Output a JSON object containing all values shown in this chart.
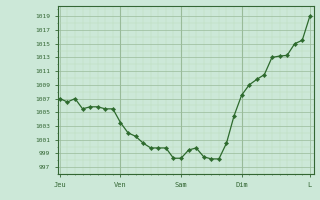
{
  "line_color": "#2d6a2d",
  "marker_color": "#2d6a2d",
  "bg_color": "#cce8d8",
  "grid_color_major": "#99bb99",
  "grid_color_minor": "#bbddbb",
  "axis_color": "#336633",
  "label_color": "#336633",
  "ytick_min": 997,
  "ytick_max": 1019,
  "ytick_step": 2,
  "ylim_min": 996,
  "ylim_max": 1020.5,
  "x_data": [
    0,
    1,
    2,
    3,
    4,
    5,
    6,
    7,
    8,
    9,
    10,
    11,
    12,
    13,
    14,
    15,
    16,
    17,
    18,
    19,
    20,
    21,
    22,
    23,
    24,
    25,
    26,
    27,
    28,
    29,
    30,
    31,
    32,
    33
  ],
  "y_data": [
    1007,
    1006.5,
    1007,
    1005.5,
    1005.8,
    1005.8,
    1005.5,
    1005.5,
    1003.5,
    1002,
    1001.5,
    1000.5,
    999.8,
    999.8,
    999.8,
    998.3,
    998.3,
    999.5,
    999.8,
    998.5,
    998.2,
    998.2,
    1000.5,
    1004.5,
    1007.5,
    1009,
    1009.8,
    1010.5,
    1013,
    1013.2,
    1013.3,
    1015,
    1015.5,
    1019
  ],
  "day_x": [
    0,
    8,
    16,
    24,
    33
  ],
  "day_labels": [
    "Jeu",
    "Ven",
    "Sam",
    "Dim",
    "L"
  ],
  "vline_x": [
    8,
    16,
    24
  ],
  "xlim_min": -0.3,
  "xlim_max": 33.5
}
